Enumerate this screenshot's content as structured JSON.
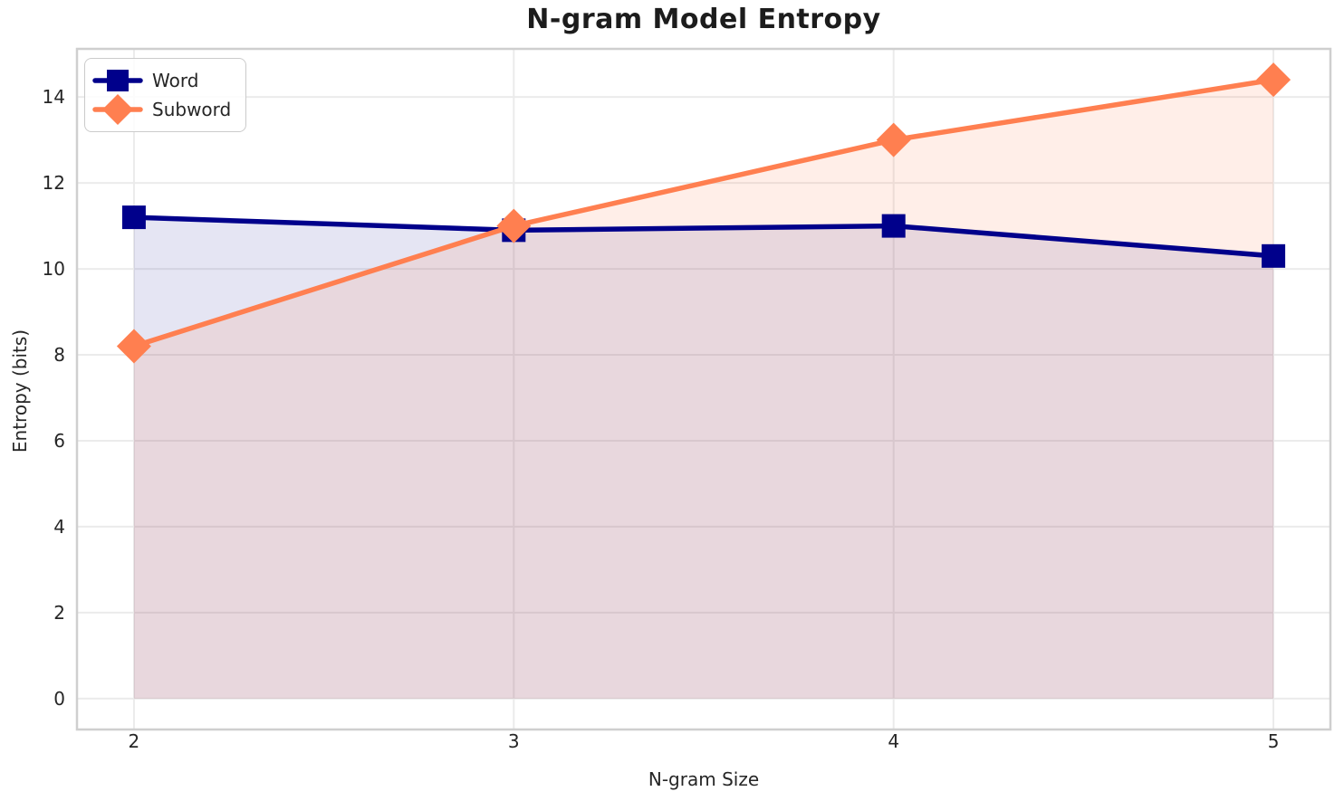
{
  "chart_data": {
    "type": "line",
    "title": "N-gram Model Entropy",
    "xlabel": "N-gram Size",
    "ylabel": "Entropy (bits)",
    "x": [
      2,
      3,
      4,
      5
    ],
    "series": [
      {
        "name": "Word",
        "values": [
          11.2,
          10.9,
          11.0,
          10.3
        ],
        "color": "#00008B",
        "marker": "square",
        "fill_alpha": 0.1
      },
      {
        "name": "Subword",
        "values": [
          8.2,
          11.0,
          13.0,
          14.4
        ],
        "color": "#FF7F50",
        "marker": "diamond",
        "fill_alpha": 0.13
      }
    ],
    "xticks": [
      2,
      3,
      4,
      5
    ],
    "yticks": [
      0,
      2,
      4,
      6,
      8,
      10,
      12,
      14
    ],
    "xlim": [
      1.85,
      5.15
    ],
    "ylim": [
      -0.72,
      15.12
    ],
    "grid": true,
    "area_fill_baseline": 0,
    "legend_position": "upper left"
  },
  "colors": {
    "background": "#FFFFFF",
    "grid": "#EBEBEB",
    "spine": "#CFCFCF",
    "tick_text": "#262626",
    "title_text": "#1C1C1C"
  }
}
